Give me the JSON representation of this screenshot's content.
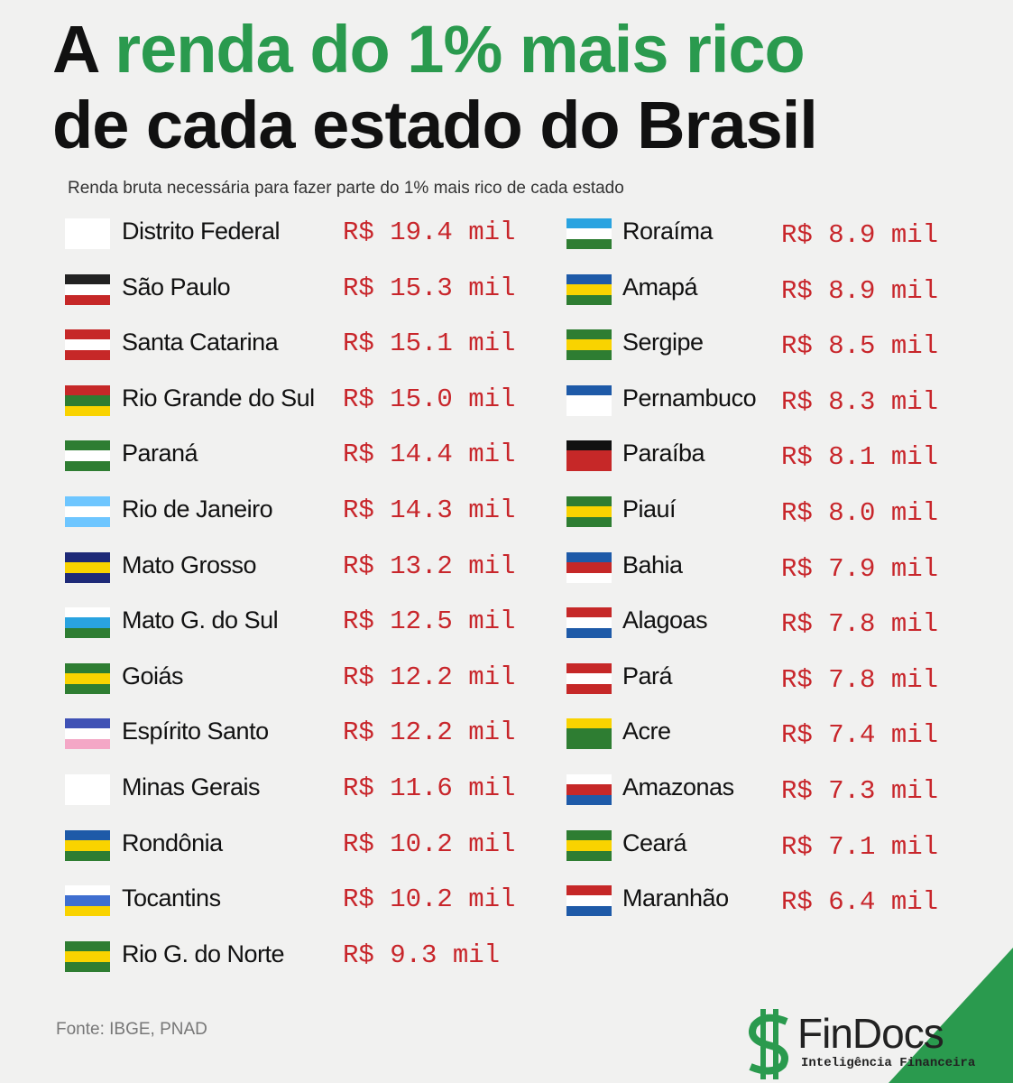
{
  "title": {
    "lead": "A",
    "highlight": "renda do 1% mais rico",
    "line2": "de cada estado do Brasil"
  },
  "subtitle": "Renda bruta necessária para fazer parte do 1% mais rico de cada estado",
  "columns": [
    [
      {
        "state": "Distrito Federal",
        "income": "R$ 19.4 mil"
      },
      {
        "state": "São Paulo",
        "income": "R$ 15.3 mil"
      },
      {
        "state": "Santa Catarina",
        "income": "R$ 15.1 mil"
      },
      {
        "state": "Rio Grande do Sul",
        "income": "R$ 15.0 mil"
      },
      {
        "state": "Paraná",
        "income": "R$ 14.4 mil"
      },
      {
        "state": "Rio de Janeiro",
        "income": "R$ 14.3 mil"
      },
      {
        "state": "Mato Grosso",
        "income": "R$ 13.2 mil"
      },
      {
        "state": "Mato G. do Sul",
        "income": "R$ 12.5 mil"
      },
      {
        "state": "Goiás",
        "income": "R$ 12.2 mil"
      },
      {
        "state": "Espírito Santo",
        "income": "R$ 12.2 mil"
      },
      {
        "state": "Minas Gerais",
        "income": "R$ 11.6 mil"
      },
      {
        "state": "Rondônia",
        "income": "R$ 10.2 mil"
      },
      {
        "state": "Tocantins",
        "income": "R$ 10.2 mil"
      },
      {
        "state": "Rio G. do Norte",
        "income": "R$ 9.3 mil"
      }
    ],
    [
      {
        "state": "Roraíma",
        "income": "R$ 8.9 mil"
      },
      {
        "state": "Amapá",
        "income": "R$ 8.9 mil"
      },
      {
        "state": "Sergipe",
        "income": "R$ 8.5 mil"
      },
      {
        "state": "Pernambuco",
        "income": "R$ 8.3 mil"
      },
      {
        "state": "Paraíba",
        "income": "R$ 8.1 mil"
      },
      {
        "state": "Piauí",
        "income": "R$ 8.0 mil"
      },
      {
        "state": "Bahia",
        "income": "R$ 7.9 mil"
      },
      {
        "state": "Alagoas",
        "income": "R$ 7.8 mil"
      },
      {
        "state": "Pará",
        "income": "R$ 7.8 mil"
      },
      {
        "state": "Acre",
        "income": "R$ 7.4 mil"
      },
      {
        "state": "Amazonas",
        "income": "R$ 7.3 mil"
      },
      {
        "state": "Ceará",
        "income": "R$ 7.1 mil"
      },
      {
        "state": "Maranhão",
        "income": "R$ 6.4 mil"
      }
    ]
  ],
  "source": "Fonte: IBGE, PNAD",
  "logo": {
    "name": "FinDocs",
    "tagline": "Inteligência Financeira"
  }
}
